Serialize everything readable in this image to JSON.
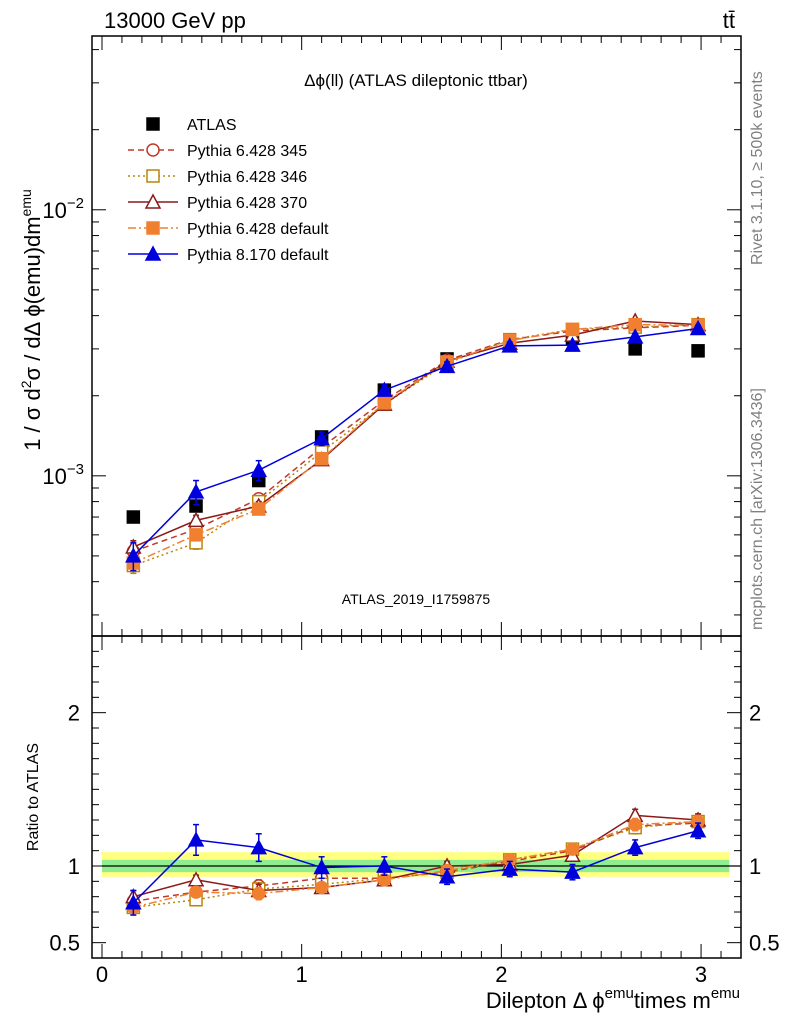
{
  "header": {
    "energy_label": "13000 GeV pp",
    "process_label": "tt̄",
    "side_rivet": "Rivet 3.1.10, ≥ 500k events",
    "side_mcplots": "mcplots.cern.ch [arXiv:1306.3436]"
  },
  "chart_data": [
    {
      "type": "line",
      "title": "Δϕ(ll) (ATLAS dileptonic ttbar)",
      "analysis_label": "ATLAS_2019_I1759875",
      "ylabel_parts": [
        "1 / σ  d",
        "2",
        "σ / dΔ ϕ(emu)dm",
        "emu"
      ],
      "yscale": "log",
      "ylim": [
        0.00025,
        0.045
      ],
      "xlim": [
        -0.05,
        3.2
      ],
      "y_ticks": [
        {
          "value": 0.001,
          "base": "10",
          "exp": "−3"
        },
        {
          "value": 0.01,
          "base": "10",
          "exp": "−2"
        }
      ],
      "grid": false,
      "legend_position": "top-left",
      "x": [
        0.157,
        0.471,
        0.785,
        1.1,
        1.414,
        1.728,
        2.042,
        2.356,
        2.67,
        2.985
      ],
      "series": [
        {
          "name": "ATLAS",
          "color": "#000000",
          "marker": "filled-square",
          "line": "none",
          "values": [
            0.0007,
            0.00077,
            0.00096,
            0.0014,
            0.0021,
            0.00275,
            0.0031,
            0.0033,
            0.003,
            0.00295
          ],
          "errors": [
            2e-05,
            2e-05,
            4e-05,
            7e-05,
            0.0001,
            0.0001,
            0.0001,
            0.0001,
            0.0001,
            0.0001
          ]
        },
        {
          "name": "Pythia 6.428 345",
          "color": "#c0392b",
          "marker": "open-circle",
          "line": "dashed",
          "values": [
            0.00052,
            0.00063,
            0.00082,
            0.00128,
            0.00192,
            0.00272,
            0.00325,
            0.0035,
            0.0036,
            0.00368
          ],
          "errors": [
            3e-05,
            3e-05,
            3e-05,
            4e-05,
            5e-05,
            6e-05,
            7e-05,
            7e-05,
            7e-05,
            7e-05
          ]
        },
        {
          "name": "Pythia 6.428 346",
          "color": "#b8860b",
          "marker": "open-square",
          "line": "dotted",
          "values": [
            0.00046,
            0.00056,
            0.0008,
            0.00123,
            0.00186,
            0.00265,
            0.00325,
            0.00355,
            0.00362,
            0.0037
          ],
          "errors": [
            3e-05,
            3e-05,
            3e-05,
            4e-05,
            5e-05,
            6e-05,
            7e-05,
            7e-05,
            7e-05,
            7e-05
          ]
        },
        {
          "name": "Pythia 6.428 370",
          "color": "#8b1a1a",
          "marker": "open-triangle",
          "line": "solid",
          "values": [
            0.00054,
            0.00068,
            0.00077,
            0.00115,
            0.00186,
            0.0027,
            0.00315,
            0.00338,
            0.00382,
            0.0037
          ],
          "errors": [
            3e-05,
            3e-05,
            3e-05,
            4e-05,
            5e-05,
            6e-05,
            7e-05,
            7e-05,
            7e-05,
            7e-05
          ]
        },
        {
          "name": "Pythia 6.428 default",
          "color": "#f08030",
          "marker": "filled-square",
          "line": "dashdot",
          "values": [
            0.00047,
            0.0006,
            0.00075,
            0.00116,
            0.00188,
            0.00268,
            0.00322,
            0.00355,
            0.0037,
            0.00368
          ],
          "errors": [
            3e-05,
            3e-05,
            3e-05,
            4e-05,
            5e-05,
            6e-05,
            7e-05,
            7e-05,
            7e-05,
            7e-05
          ]
        },
        {
          "name": "Pythia 8.170 default",
          "color": "#0000dd",
          "marker": "filled-triangle",
          "line": "solid",
          "values": [
            0.0005,
            0.00087,
            0.00105,
            0.00138,
            0.0021,
            0.00258,
            0.00308,
            0.0031,
            0.00333,
            0.00358
          ],
          "errors": [
            6e-05,
            9e-05,
            9e-05,
            8e-05,
            0.0001,
            0.0001,
            0.0001,
            0.0001,
            0.0001,
            0.0001
          ]
        }
      ]
    },
    {
      "type": "line",
      "ylabel": "Ratio to ATLAS",
      "xlabel_parts": [
        "Dilepton Δ ϕ",
        "emu",
        "times m",
        "emu"
      ],
      "ylim": [
        0.4,
        2.5
      ],
      "xlim": [
        -0.05,
        3.2
      ],
      "y_ticks": [
        0.5,
        1,
        2
      ],
      "y_tick_labels": [
        "0.5",
        "1",
        "2"
      ],
      "x_ticks": [
        0,
        1,
        2,
        3
      ],
      "x_tick_labels": [
        "0",
        "1",
        "2",
        "3"
      ],
      "reference_line": 1,
      "band_outer": [
        0.93,
        1.09
      ],
      "band_inner": [
        0.96,
        1.04
      ],
      "colors": {
        "band_outer": "#ffff80",
        "band_inner": "#90ee90",
        "reference": "#00aa55"
      },
      "x": [
        0.157,
        0.471,
        0.785,
        1.1,
        1.414,
        1.728,
        2.042,
        2.356,
        2.67,
        2.985
      ],
      "series": [
        {
          "name": "Pythia 6.428 345",
          "color": "#c0392b",
          "marker": "open-circle",
          "line": "dashed",
          "values": [
            0.77,
            0.83,
            0.87,
            0.92,
            0.92,
            0.96,
            1.03,
            1.1,
            1.26,
            1.28
          ],
          "errors": [
            0.04,
            0.03,
            0.04,
            0.03,
            0.03,
            0.03,
            0.03,
            0.03,
            0.04,
            0.04
          ]
        },
        {
          "name": "Pythia 6.428 346",
          "color": "#b8860b",
          "marker": "open-square",
          "line": "dotted",
          "values": [
            0.73,
            0.78,
            0.85,
            0.88,
            0.92,
            0.96,
            1.04,
            1.11,
            1.25,
            1.29
          ],
          "errors": [
            0.04,
            0.03,
            0.04,
            0.03,
            0.03,
            0.03,
            0.03,
            0.03,
            0.04,
            0.04
          ]
        },
        {
          "name": "Pythia 6.428 370",
          "color": "#8b1a1a",
          "marker": "open-triangle",
          "line": "solid",
          "values": [
            0.8,
            0.91,
            0.84,
            0.86,
            0.91,
            1.0,
            1.01,
            1.07,
            1.33,
            1.3
          ],
          "errors": [
            0.04,
            0.03,
            0.04,
            0.03,
            0.03,
            0.03,
            0.03,
            0.03,
            0.04,
            0.04
          ]
        },
        {
          "name": "Pythia 6.428 default",
          "color": "#f08030",
          "marker": "filled-circle",
          "line": "dashdot",
          "values": [
            0.73,
            0.83,
            0.82,
            0.86,
            0.91,
            0.97,
            1.04,
            1.11,
            1.27,
            1.29
          ],
          "errors": [
            0.04,
            0.03,
            0.04,
            0.03,
            0.03,
            0.03,
            0.03,
            0.03,
            0.04,
            0.04
          ]
        },
        {
          "name": "Pythia 8.170 default",
          "color": "#0000dd",
          "marker": "filled-triangle",
          "line": "solid",
          "values": [
            0.76,
            1.17,
            1.12,
            0.99,
            1.0,
            0.93,
            0.98,
            0.96,
            1.12,
            1.23
          ],
          "errors": [
            0.08,
            0.1,
            0.09,
            0.07,
            0.06,
            0.05,
            0.05,
            0.05,
            0.05,
            0.05
          ]
        }
      ]
    }
  ]
}
